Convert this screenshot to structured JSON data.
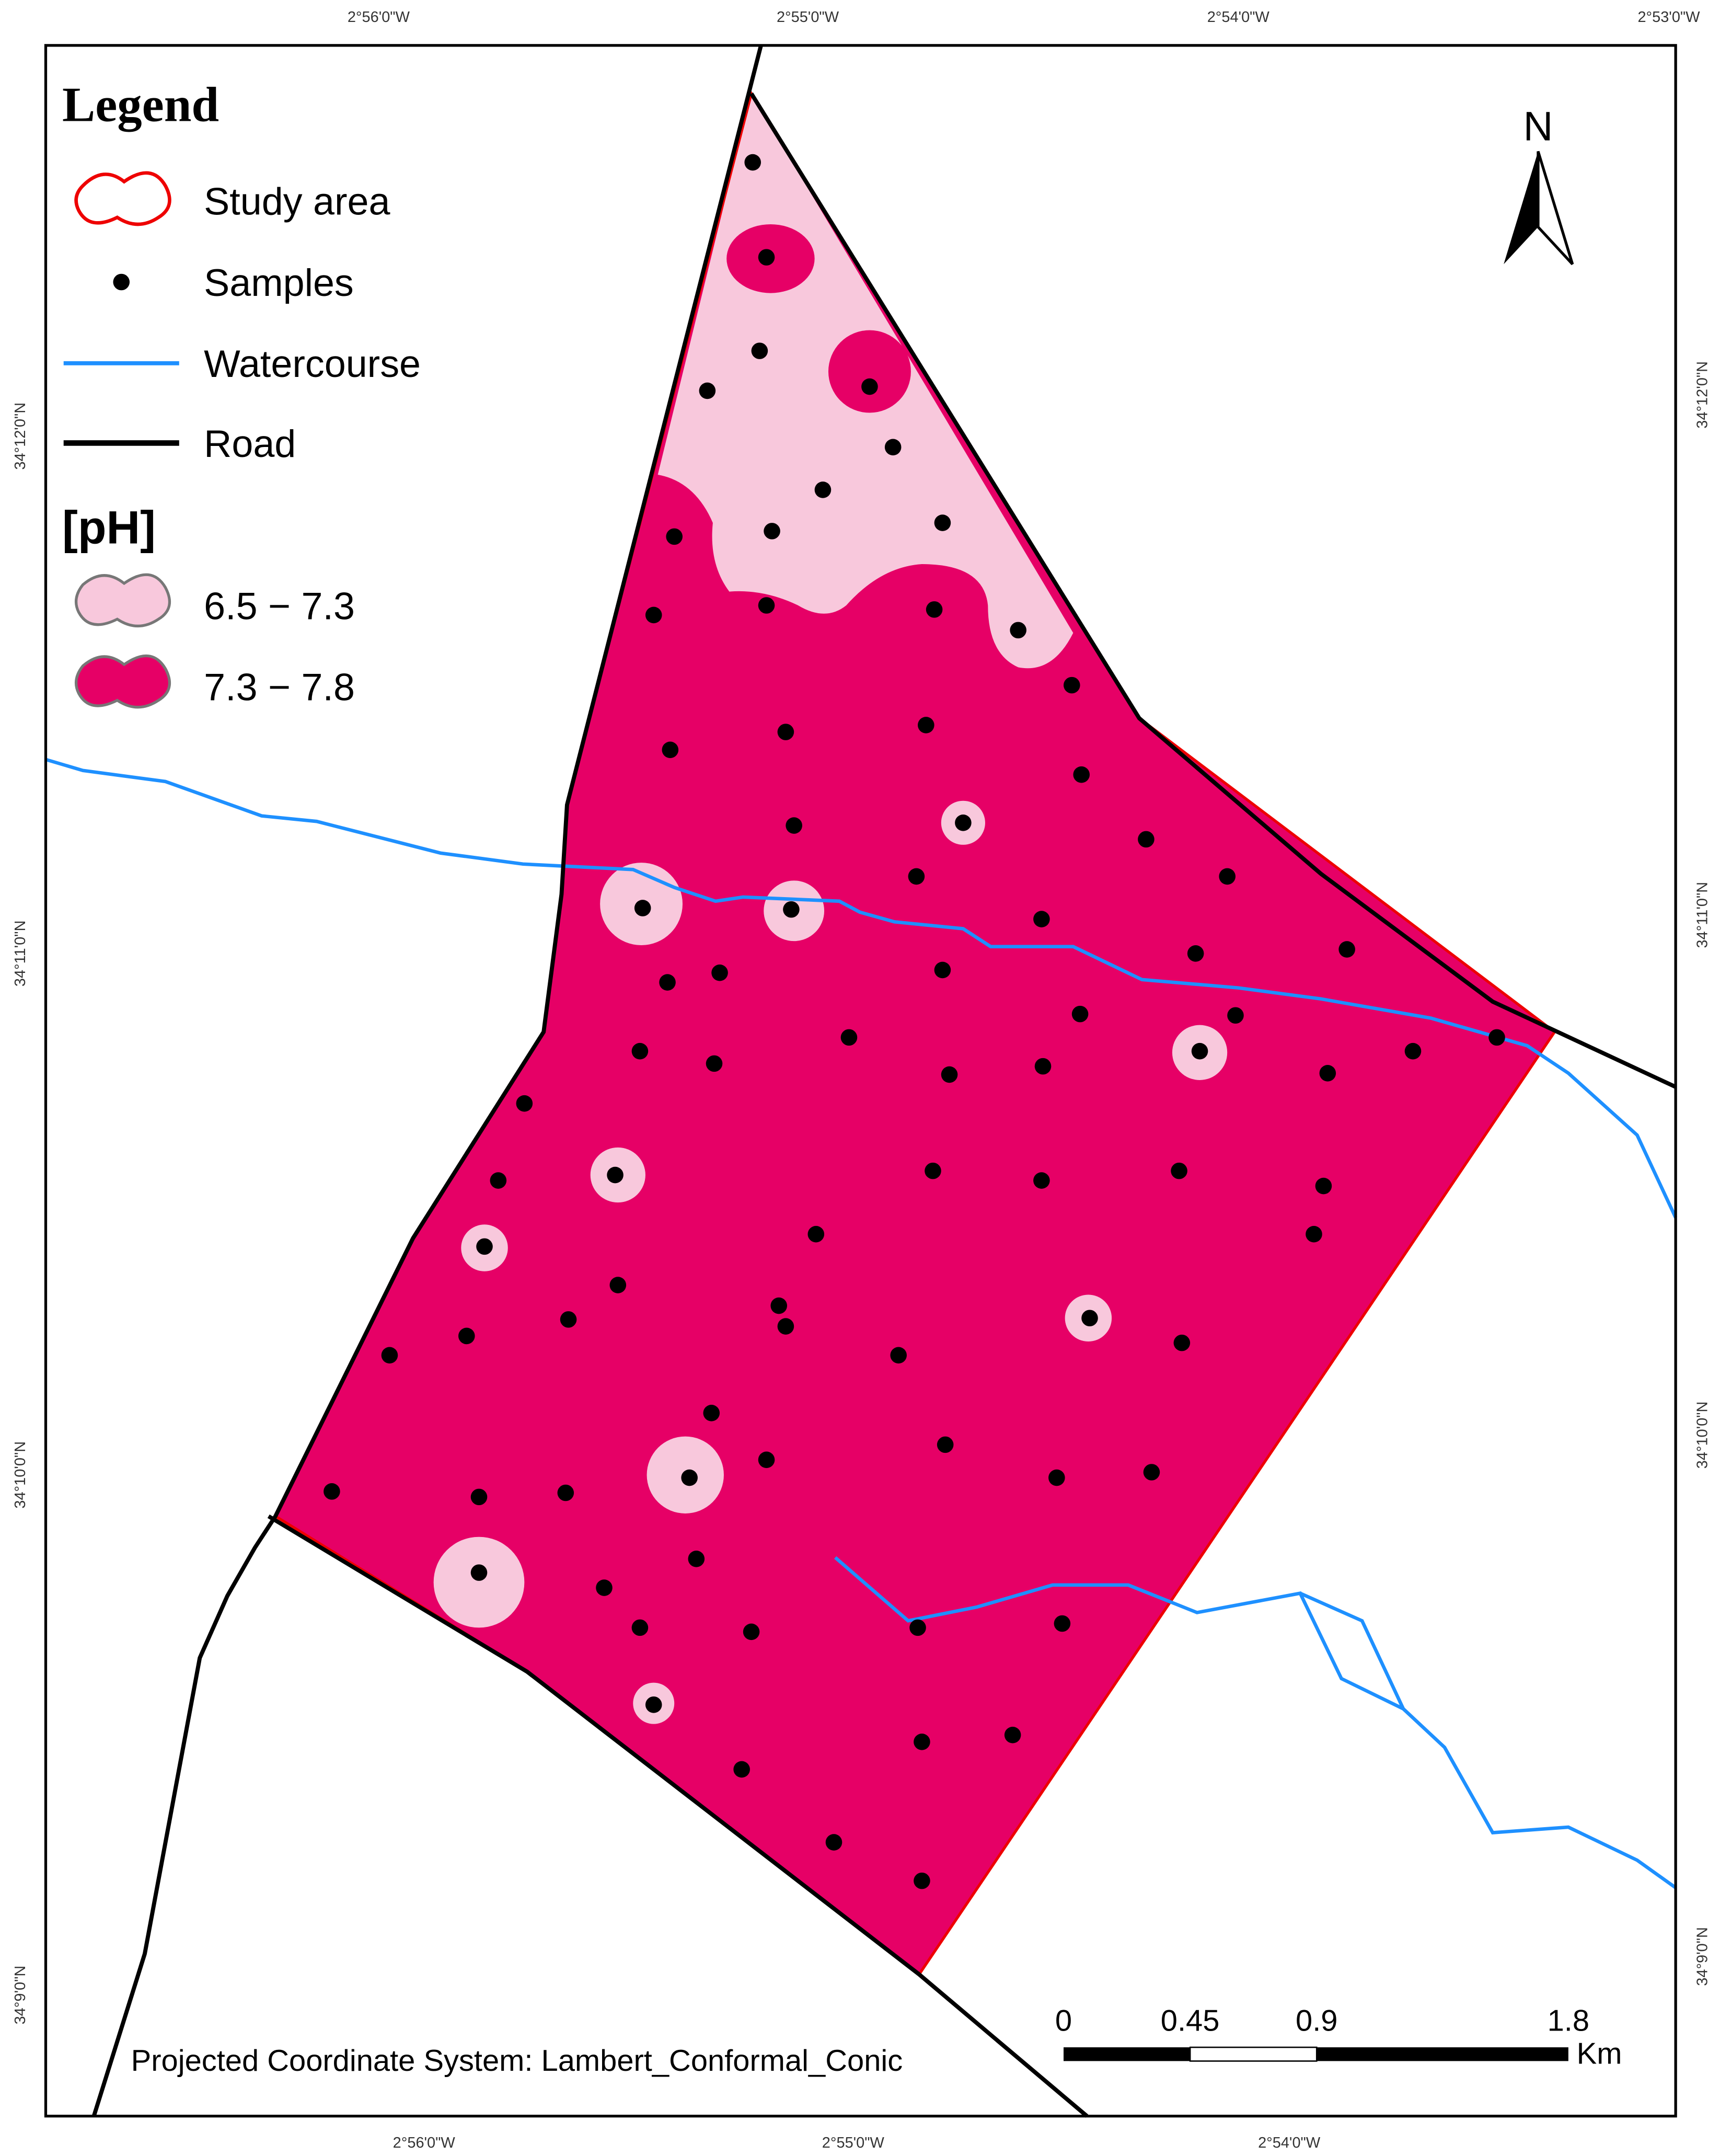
{
  "legend": {
    "title": "Legend",
    "items": [
      {
        "label": "Study area"
      },
      {
        "label": "Samples"
      },
      {
        "label": "Watercourse"
      },
      {
        "label": "Road"
      }
    ]
  },
  "ph_legend": {
    "title": "[pH]",
    "classes": [
      {
        "label": "6.5 − 7.3",
        "color": "#f8c8dc"
      },
      {
        "label": "7.3 − 7.8",
        "color": "#e60066"
      }
    ]
  },
  "north_arrow": "N",
  "top_labels": [
    "2°56'0\"W",
    "2°55'0\"W",
    "2°54'0\"W",
    "2°53'0\"W"
  ],
  "bottom_labels": [
    "2°56'0\"W",
    "2°55'0\"W",
    "2°54'0\"W"
  ],
  "left_labels": [
    "34°12'0\"N",
    "34°11'0\"N",
    "34°10'0\"N",
    "34°9'0\"N"
  ],
  "right_labels": [
    "34°12'0\"N",
    "34°11'0\"N",
    "34°10'0\"N",
    "34°9'0\"N"
  ],
  "scale_bar": {
    "labels": [
      "0",
      "0.45",
      "0.9",
      "1.8"
    ],
    "unit": "Km"
  },
  "projection": "Projected Coordinate System: Lambert_Conformal_Conic"
}
